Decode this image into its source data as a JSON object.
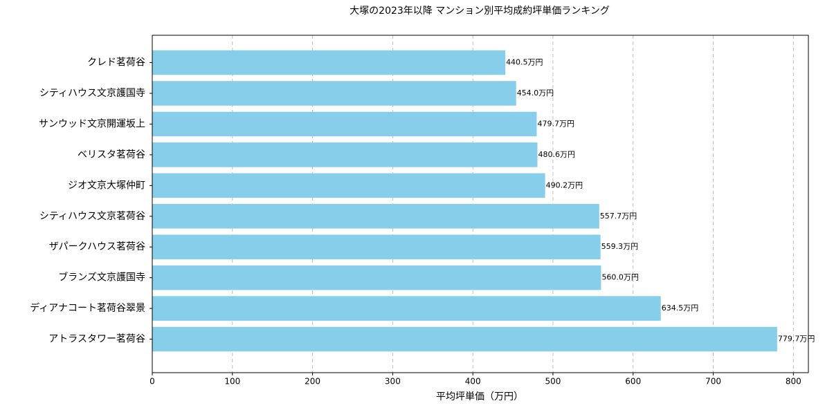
{
  "chart_data": {
    "type": "barh",
    "title": "大塚の2023年以降 マンション別平均成約坪単価ランキング",
    "xlabel": "平均坪単価（万円）",
    "categories": [
      "クレド茗荷谷",
      "シティハウス文京護国寺",
      "サンウッド文京開運坂上",
      "ベリスタ茗荷谷",
      "ジオ文京大塚仲町",
      "シティハウス文京茗荷谷",
      "ザパークハウス茗荷谷",
      "ブランズ文京護国寺",
      "ディアナコート茗荷谷翠景",
      "アトラスタワー茗荷谷"
    ],
    "values": [
      440.5,
      454.0,
      479.7,
      480.6,
      490.2,
      557.7,
      559.3,
      560.0,
      634.5,
      779.7
    ],
    "value_labels": [
      "440.5万円",
      "454.0万円",
      "479.7万円",
      "480.6万円",
      "490.2万円",
      "557.7万円",
      "559.3万円",
      "560.0万円",
      "634.5万円",
      "779.7万円"
    ],
    "color": "#87ceeb",
    "xlim": [
      0,
      818.7
    ],
    "xticks": [
      0,
      100,
      200,
      300,
      400,
      500,
      600,
      700,
      800
    ],
    "grid": true
  }
}
